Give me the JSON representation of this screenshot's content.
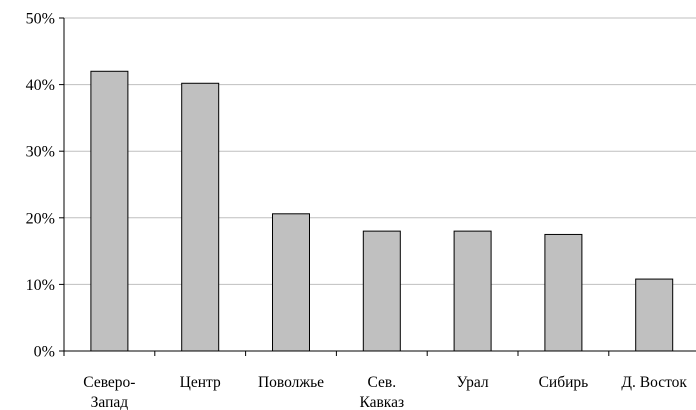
{
  "chart_data": {
    "type": "bar",
    "title": "",
    "xlabel": "",
    "ylabel": "",
    "ylim": [
      0,
      50
    ],
    "yticks": [
      "0%",
      "10%",
      "20%",
      "30%",
      "40%",
      "50%"
    ],
    "grid": true,
    "categories": [
      [
        "Северо-",
        "Запад"
      ],
      [
        "Центр"
      ],
      [
        "Поволжье"
      ],
      [
        "Сев.",
        "Кавказ"
      ],
      [
        "Урал"
      ],
      [
        "Сибирь"
      ],
      [
        "Д. Восток"
      ]
    ],
    "values": [
      42.0,
      40.2,
      20.6,
      18.0,
      18.0,
      17.5,
      10.8
    ],
    "colors": {
      "bar": "#c0c0c0",
      "bar_stroke": "#000000",
      "grid": "#bfbfbf"
    }
  }
}
